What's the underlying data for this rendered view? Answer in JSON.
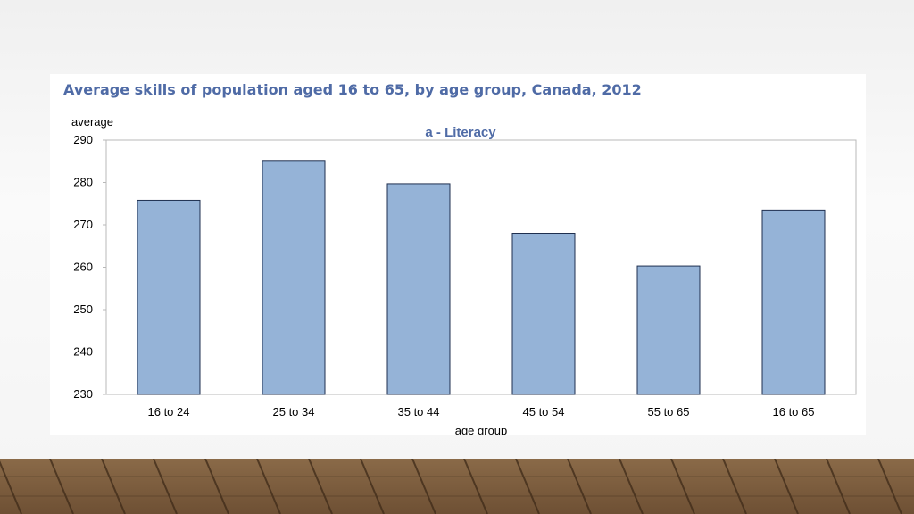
{
  "slide": {
    "title": "Average skills of population aged 16 to 65, by age group, Canada, 2012"
  },
  "chart_data": {
    "type": "bar",
    "title": "a - Literacy",
    "ylabel": "average",
    "xlabel": "age group",
    "categories": [
      "16 to 24",
      "25 to 34",
      "35 to 44",
      "45 to 54",
      "55 to 65",
      "16 to 65"
    ],
    "values": [
      275.8,
      285.2,
      279.7,
      268.0,
      260.3,
      273.5
    ],
    "ylim": [
      230,
      290
    ],
    "yticks": [
      230,
      240,
      250,
      260,
      270,
      280,
      290
    ],
    "bar_color": "#95b3d7",
    "bar_edge_color": "#1f2f4f",
    "title_color": "#4f6ba6",
    "grid": false,
    "legend": "none"
  }
}
